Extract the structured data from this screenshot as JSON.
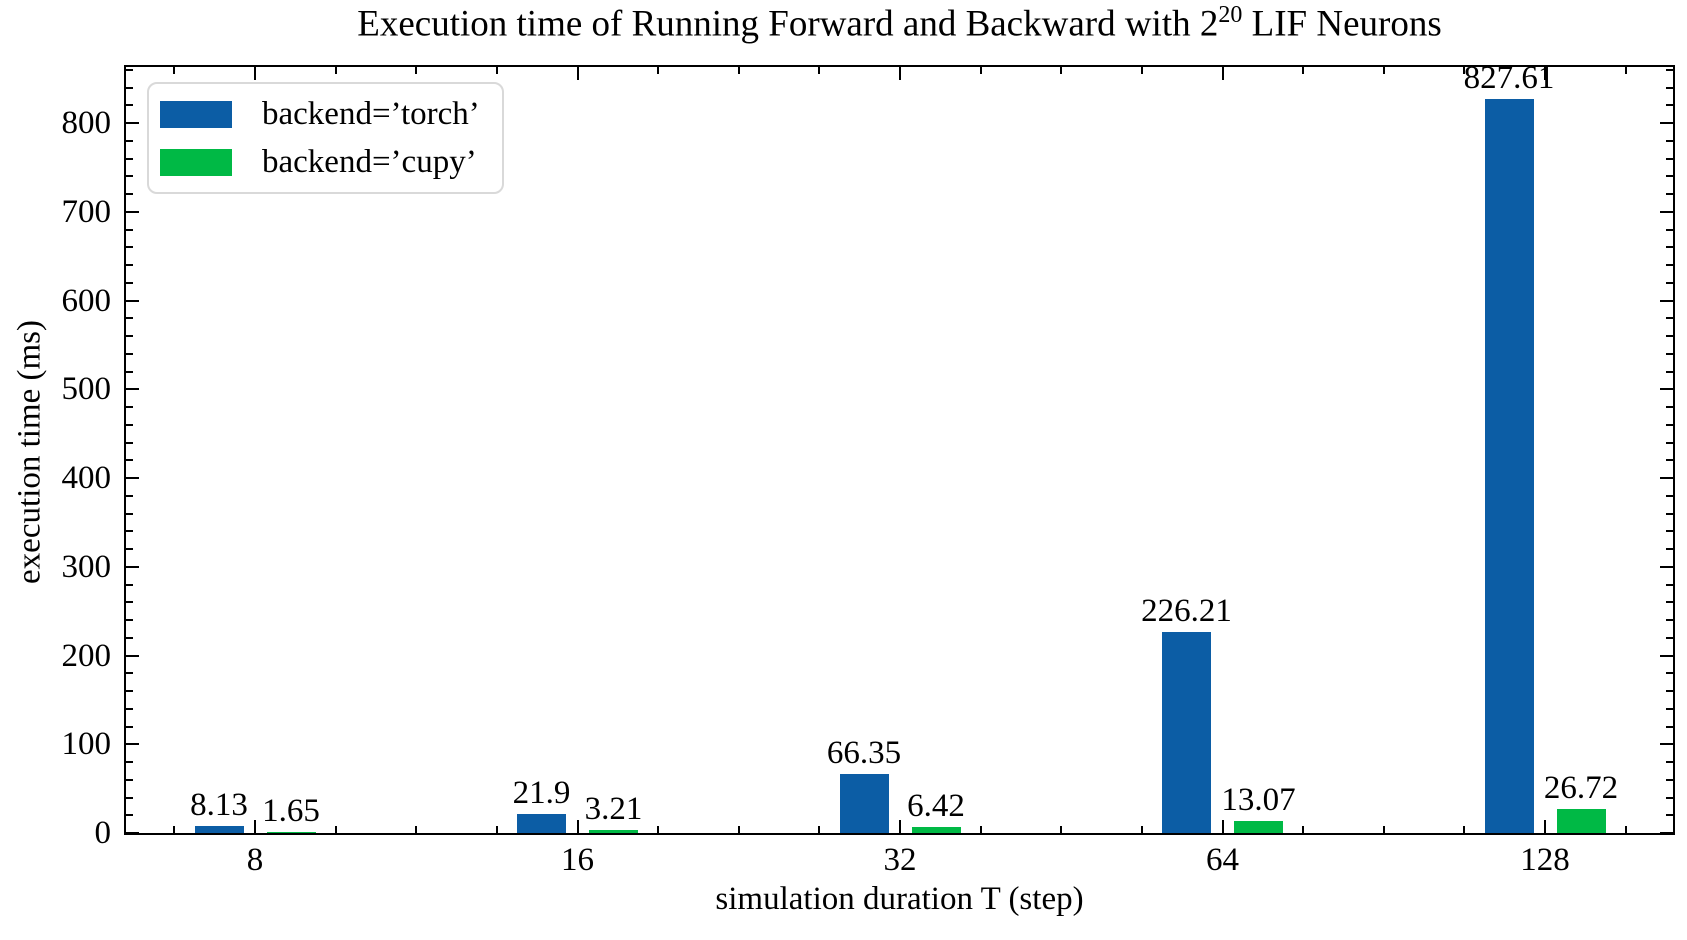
{
  "chart_data": {
    "type": "bar",
    "title": "Execution time of Running Forward and Backward with 2²⁰ LIF Neurons",
    "title_pre": "Execution time of Running Forward and Backward with 2",
    "title_sup": "20",
    "title_post": " LIF Neurons",
    "xlabel": "simulation duration T (step)",
    "ylabel": "execution time (ms)",
    "categories": [
      "8",
      "16",
      "32",
      "64",
      "128"
    ],
    "series": [
      {
        "name": "backend=’torch’",
        "color": "#0C5DA5",
        "values": [
          8.13,
          21.9,
          66.35,
          226.21,
          827.61
        ],
        "value_labels": [
          "8.13",
          "21.9",
          "66.35",
          "226.21",
          "827.61"
        ]
      },
      {
        "name": "backend=’cupy’",
        "color": "#00B945",
        "values": [
          1.65,
          3.21,
          6.42,
          13.07,
          26.72
        ],
        "value_labels": [
          "1.65",
          "3.21",
          "6.42",
          "13.07",
          "26.72"
        ]
      }
    ],
    "ylim": [
      0,
      863
    ],
    "y_major_ticks": [
      0,
      100,
      200,
      300,
      400,
      500,
      600,
      700,
      800
    ],
    "y_minor_step": 20,
    "x_minor_divisions_per_unit": 4,
    "legend_position": "upper left",
    "grid": false,
    "tick_direction": "in",
    "bar_value_labels_shown": true,
    "axis_color": "#000000",
    "background_color": "#ffffff",
    "legend_border_color": "#d9d9d9"
  }
}
